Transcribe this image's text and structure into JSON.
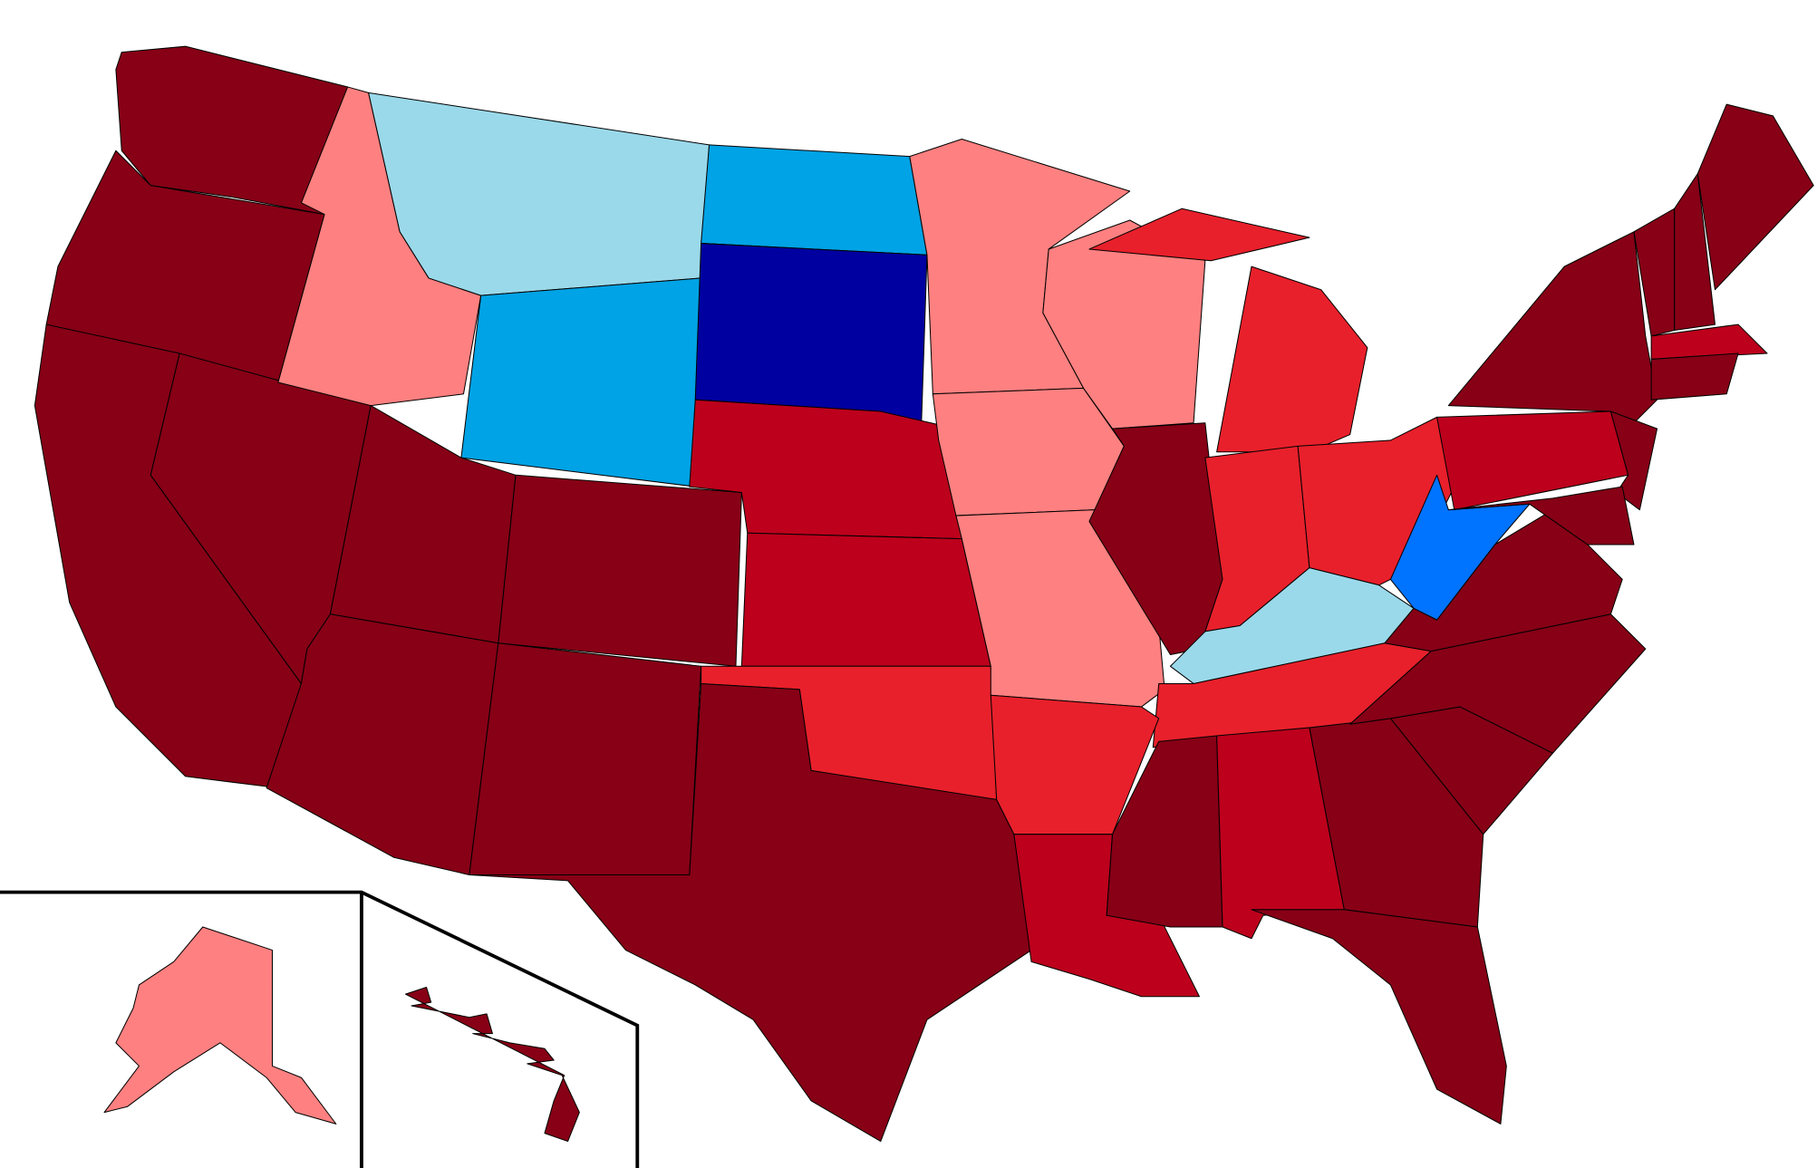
{
  "regions": [
    {
      "color": "#870016"
    },
    {
      "color": "#870016"
    },
    {
      "color": "#870016"
    },
    {
      "color": "#870016"
    },
    {
      "color": "#ff8080"
    },
    {
      "color": "#9ad9ea"
    },
    {
      "color": "#00a3e5"
    },
    {
      "color": "#870016"
    },
    {
      "color": "#870016"
    },
    {
      "color": "#870016"
    },
    {
      "color": "#870016"
    },
    {
      "color": "#00a3e5"
    },
    {
      "color": "#0000a0"
    },
    {
      "color": "#bd001c"
    },
    {
      "color": "#bd001c"
    },
    {
      "color": "#e8202b"
    },
    {
      "color": "#870016"
    },
    {
      "color": "#ff8080"
    },
    {
      "color": "#ff8080"
    },
    {
      "color": "#ff8080"
    },
    {
      "color": "#ff8080"
    },
    {
      "color": "#870016"
    },
    {
      "color": "#e8202b"
    },
    {
      "color": "#e8202b"
    },
    {
      "color": "#e8202b"
    },
    {
      "color": "#e8202b"
    },
    {
      "color": "#9ad9ea"
    },
    {
      "color": "#e8202b"
    },
    {
      "color": "#e8202b"
    },
    {
      "color": "#bd001c"
    },
    {
      "color": "#870016"
    },
    {
      "color": "#bd001c"
    },
    {
      "color": "#870016"
    },
    {
      "color": "#870016"
    },
    {
      "color": "#870016"
    },
    {
      "color": "#870016"
    },
    {
      "color": "#870016"
    },
    {
      "color": "#0073ff"
    },
    {
      "color": "#bd001c"
    },
    {
      "color": "#870016"
    },
    {
      "color": "#870016"
    },
    {
      "color": "#870016"
    },
    {
      "color": "#870016"
    },
    {
      "color": "#870016"
    },
    {
      "color": "#870016"
    },
    {
      "color": "#bd001c"
    },
    {
      "color": "#870016"
    },
    {
      "color": "#ff8080"
    },
    {
      "color": "#870016"
    }
  ]
}
